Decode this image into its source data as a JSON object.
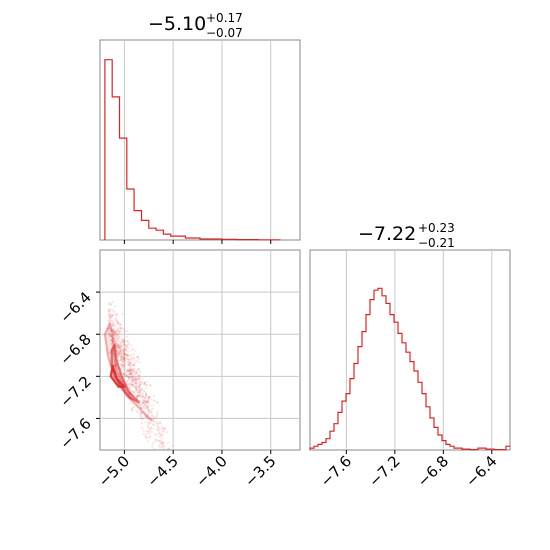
{
  "figure": {
    "type": "corner_plot",
    "color": "#d62728",
    "grid_color": "#c8c8c8"
  },
  "chart_data": [
    {
      "type": "histogram",
      "panel": "top-left",
      "title": {
        "value": "−5.10",
        "plus": "+0.17",
        "minus": "−0.07"
      },
      "xlim": [
        -5.25,
        -3.2
      ],
      "grid": true,
      "bin_width": 0.075,
      "x_start": -5.2,
      "heights": [
        0.92,
        0.73,
        0.52,
        0.26,
        0.15,
        0.1,
        0.06,
        0.05,
        0.03,
        0.02,
        0.02,
        0.01,
        0.01,
        0.005,
        0.005,
        0.005,
        0.003,
        0.003,
        0.002,
        0.002,
        0.002,
        0.001,
        0.001,
        0.001
      ]
    },
    {
      "type": "scatter_contour",
      "panel": "bottom-left",
      "xlim": [
        -5.25,
        -3.2
      ],
      "ylim": [
        -7.9,
        -6.0
      ],
      "xticks": [
        "−5.0",
        "−4.5",
        "−4.0",
        "−3.5"
      ],
      "xtick_values": [
        -5.0,
        -4.5,
        -4.0,
        -3.5
      ],
      "yticks": [
        "−6.4",
        "−6.8",
        "−7.2",
        "−7.6"
      ],
      "ytick_values": [
        -6.4,
        -6.8,
        -7.2,
        -7.6
      ],
      "grid": true,
      "contour_levels": [
        [
          [
            -5.15,
            -6.7
          ],
          [
            -5.12,
            -6.8
          ],
          [
            -5.1,
            -7.0
          ],
          [
            -5.08,
            -7.15
          ],
          [
            -5.0,
            -7.3
          ],
          [
            -4.9,
            -7.45
          ],
          [
            -4.75,
            -7.6
          ],
          [
            -4.72,
            -7.62
          ],
          [
            -4.85,
            -7.5
          ],
          [
            -4.98,
            -7.38
          ],
          [
            -5.1,
            -7.22
          ],
          [
            -5.17,
            -7.0
          ],
          [
            -5.2,
            -6.8
          ],
          [
            -5.15,
            -6.7
          ]
        ],
        [
          [
            -5.1,
            -6.9
          ],
          [
            -5.08,
            -7.05
          ],
          [
            -5.02,
            -7.22
          ],
          [
            -4.95,
            -7.35
          ],
          [
            -4.85,
            -7.45
          ],
          [
            -4.95,
            -7.4
          ],
          [
            -5.05,
            -7.28
          ],
          [
            -5.13,
            -7.1
          ],
          [
            -5.13,
            -6.95
          ],
          [
            -5.1,
            -6.9
          ]
        ],
        [
          [
            -5.12,
            -7.1
          ],
          [
            -5.08,
            -7.22
          ],
          [
            -5.0,
            -7.3
          ],
          [
            -5.06,
            -7.3
          ],
          [
            -5.14,
            -7.2
          ],
          [
            -5.12,
            -7.1
          ]
        ]
      ]
    },
    {
      "type": "histogram",
      "panel": "bottom-right",
      "title": {
        "value": "−7.22",
        "plus": "+0.23",
        "minus": "−0.21"
      },
      "xlim": [
        -7.9,
        -6.25
      ],
      "xticks": [
        "−7.6",
        "−7.2",
        "−6.8",
        "−6.4"
      ],
      "xtick_values": [
        -7.6,
        -7.2,
        -6.8,
        -6.4
      ],
      "grid": true,
      "bin_width": 0.033,
      "x_start": -7.9,
      "heights": [
        0.01,
        0.02,
        0.03,
        0.04,
        0.06,
        0.1,
        0.14,
        0.2,
        0.26,
        0.3,
        0.38,
        0.46,
        0.55,
        0.63,
        0.72,
        0.8,
        0.85,
        0.86,
        0.82,
        0.78,
        0.72,
        0.68,
        0.62,
        0.57,
        0.52,
        0.47,
        0.42,
        0.36,
        0.3,
        0.23,
        0.17,
        0.12,
        0.08,
        0.05,
        0.03,
        0.02,
        0.01,
        0.01,
        0.005,
        0.005,
        0.002,
        0.002,
        0.01,
        0.01,
        0.005,
        0.005,
        0.002,
        0.002,
        0.002,
        0.02
      ]
    }
  ]
}
